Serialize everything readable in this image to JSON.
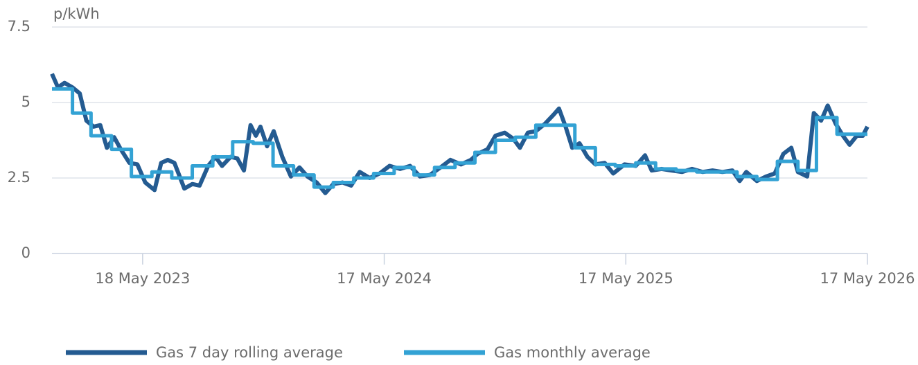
{
  "chart_data": {
    "type": "line",
    "y_label": "p/kWh",
    "xlim": [
      "2023-01-01",
      "2026-05-17"
    ],
    "xticks": [
      {
        "value": "2023-05-18",
        "label": "18 May 2023"
      },
      {
        "value": "2024-05-17",
        "label": "17 May 2024"
      },
      {
        "value": "2025-05-17",
        "label": "17 May 2025"
      },
      {
        "value": "2026-05-17",
        "label": "17 May 2026"
      }
    ],
    "ylim": [
      0,
      7.5
    ],
    "yticks": [
      0,
      2.5,
      5,
      7.5
    ],
    "grid": true,
    "legend": "bottom",
    "series": [
      {
        "name": "Gas 7 day rolling average",
        "color": "#245b91",
        "step": false,
        "x": [
          "2023-01-01",
          "2023-01-10",
          "2023-01-20",
          "2023-02-01",
          "2023-02-12",
          "2023-02-22",
          "2023-03-05",
          "2023-03-15",
          "2023-03-25",
          "2023-04-05",
          "2023-04-15",
          "2023-04-28",
          "2023-05-10",
          "2023-05-22",
          "2023-06-05",
          "2023-06-15",
          "2023-06-25",
          "2023-07-05",
          "2023-07-20",
          "2023-08-01",
          "2023-08-12",
          "2023-08-25",
          "2023-09-05",
          "2023-09-15",
          "2023-09-28",
          "2023-10-08",
          "2023-10-18",
          "2023-10-28",
          "2023-11-05",
          "2023-11-12",
          "2023-11-22",
          "2023-12-02",
          "2023-12-15",
          "2023-12-28",
          "2024-01-10",
          "2024-01-22",
          "2024-02-05",
          "2024-02-18",
          "2024-03-01",
          "2024-03-15",
          "2024-03-28",
          "2024-04-10",
          "2024-04-25",
          "2024-05-10",
          "2024-05-25",
          "2024-06-10",
          "2024-06-25",
          "2024-07-10",
          "2024-07-25",
          "2024-08-10",
          "2024-08-25",
          "2024-09-10",
          "2024-09-25",
          "2024-10-05",
          "2024-10-20",
          "2024-11-01",
          "2024-11-15",
          "2024-11-28",
          "2024-12-08",
          "2024-12-20",
          "2025-01-01",
          "2025-01-15",
          "2025-01-28",
          "2025-02-05",
          "2025-02-15",
          "2025-02-25",
          "2025-03-08",
          "2025-03-20",
          "2025-04-01",
          "2025-04-15",
          "2025-04-28",
          "2025-05-15",
          "2025-06-01",
          "2025-06-15",
          "2025-06-25",
          "2025-07-10",
          "2025-07-25",
          "2025-08-10",
          "2025-08-25",
          "2025-09-10",
          "2025-09-25",
          "2025-10-10",
          "2025-10-25",
          "2025-11-05",
          "2025-11-15",
          "2025-12-01",
          "2025-12-15",
          "2025-12-28",
          "2026-01-10",
          "2026-01-22",
          "2026-02-01",
          "2026-02-15",
          "2026-02-25",
          "2026-03-08",
          "2026-03-18",
          "2026-03-30",
          "2026-04-10",
          "2026-04-20",
          "2026-05-01",
          "2026-05-10",
          "2026-05-17"
        ],
        "values": [
          5.95,
          5.5,
          5.65,
          5.5,
          5.3,
          4.4,
          4.2,
          4.25,
          3.5,
          3.85,
          3.45,
          3.0,
          2.95,
          2.35,
          2.1,
          3.0,
          3.1,
          3.0,
          2.15,
          2.3,
          2.25,
          2.9,
          3.2,
          2.9,
          3.2,
          3.15,
          2.75,
          4.25,
          3.9,
          4.2,
          3.55,
          4.05,
          3.2,
          2.55,
          2.85,
          2.55,
          2.35,
          2.0,
          2.3,
          2.35,
          2.25,
          2.7,
          2.5,
          2.65,
          2.9,
          2.8,
          2.9,
          2.55,
          2.6,
          2.85,
          3.1,
          2.95,
          3.1,
          3.3,
          3.45,
          3.9,
          4.0,
          3.8,
          3.5,
          4.0,
          4.05,
          4.3,
          4.6,
          4.8,
          4.2,
          3.5,
          3.65,
          3.2,
          2.95,
          3.0,
          2.65,
          2.95,
          2.9,
          3.25,
          2.75,
          2.8,
          2.75,
          2.7,
          2.8,
          2.7,
          2.75,
          2.7,
          2.75,
          2.4,
          2.7,
          2.4,
          2.55,
          2.65,
          3.3,
          3.5,
          2.7,
          2.55,
          4.65,
          4.4,
          4.9,
          4.3,
          3.9,
          3.6,
          3.9,
          3.9,
          4.2
        ]
      },
      {
        "name": "Gas monthly average",
        "color": "#33a2d4",
        "step": true,
        "x": [
          "2023-01-01",
          "2023-02-01",
          "2023-03-01",
          "2023-04-01",
          "2023-05-01",
          "2023-06-01",
          "2023-07-01",
          "2023-08-01",
          "2023-09-01",
          "2023-10-01",
          "2023-11-01",
          "2023-12-01",
          "2024-01-01",
          "2024-02-01",
          "2024-03-01",
          "2024-04-01",
          "2024-05-01",
          "2024-06-01",
          "2024-07-01",
          "2024-08-01",
          "2024-09-01",
          "2024-10-01",
          "2024-11-01",
          "2024-12-01",
          "2025-01-01",
          "2025-02-01",
          "2025-03-01",
          "2025-04-01",
          "2025-05-01",
          "2025-06-01",
          "2025-07-01",
          "2025-08-01",
          "2025-09-01",
          "2025-10-01",
          "2025-11-01",
          "2025-12-01",
          "2026-01-01",
          "2026-02-01",
          "2026-03-01",
          "2026-04-01",
          "2026-05-01"
        ],
        "values": [
          5.45,
          4.65,
          3.9,
          3.45,
          2.55,
          2.7,
          2.5,
          2.9,
          3.2,
          3.7,
          3.65,
          2.9,
          2.6,
          2.2,
          2.35,
          2.5,
          2.65,
          2.85,
          2.6,
          2.85,
          3.0,
          3.35,
          3.75,
          3.85,
          4.25,
          4.25,
          3.5,
          2.95,
          2.9,
          3.0,
          2.8,
          2.75,
          2.7,
          2.7,
          2.55,
          2.45,
          3.05,
          2.75,
          4.5,
          3.95,
          3.95
        ]
      }
    ]
  }
}
